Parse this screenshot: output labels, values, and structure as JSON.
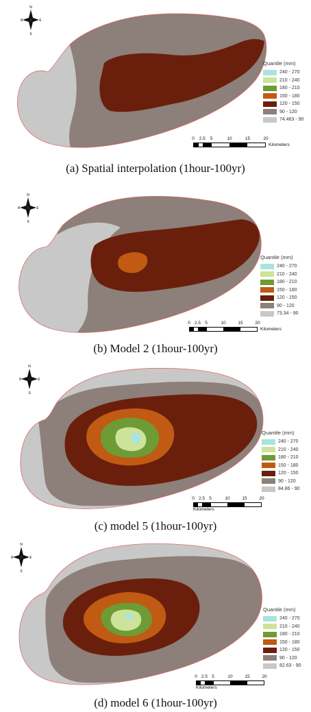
{
  "panels": [
    {
      "caption": "(a) Spatial interpolation (1hour-100yr)",
      "legend_title": "Quantile (mm)",
      "legend": [
        {
          "label": "240 - 270",
          "color": "#a8e4e0"
        },
        {
          "label": "210 - 240",
          "color": "#cde39a"
        },
        {
          "label": "180 - 210",
          "color": "#6e9b35"
        },
        {
          "label": "150 - 180",
          "color": "#c15a12"
        },
        {
          "label": "120 - 150",
          "color": "#6a1f0c"
        },
        {
          "label": "90 - 120",
          "color": "#8d7f79"
        },
        {
          "label": "74.463 - 90",
          "color": "#c8c8c8"
        }
      ],
      "scale_ticks": [
        "0",
        "2.5",
        "5",
        "10",
        "15",
        "20"
      ],
      "scale_unit": "Kilometers"
    },
    {
      "caption": "(b) Model 2 (1hour-100yr)",
      "legend_title": "Quantile (mm)",
      "legend": [
        {
          "label": "240 - 270",
          "color": "#a8e4e0"
        },
        {
          "label": "210 - 240",
          "color": "#cde39a"
        },
        {
          "label": "180 - 210",
          "color": "#6e9b35"
        },
        {
          "label": "150 - 180",
          "color": "#c15a12"
        },
        {
          "label": "120 - 150",
          "color": "#6a1f0c"
        },
        {
          "label": "90 - 120",
          "color": "#8d7f79"
        },
        {
          "label": "73.34 - 90",
          "color": "#c8c8c8"
        }
      ],
      "scale_ticks": [
        "0",
        "2.5",
        "5",
        "10",
        "15",
        "20"
      ],
      "scale_unit": "Kilometers"
    },
    {
      "caption": "(c) model 5 (1hour-100yr)",
      "legend_title": "Quantile (mm)",
      "legend": [
        {
          "label": "240 - 270",
          "color": "#a8e4e0"
        },
        {
          "label": "210 - 240",
          "color": "#cde39a"
        },
        {
          "label": "180 - 210",
          "color": "#6e9b35"
        },
        {
          "label": "150 - 180",
          "color": "#c15a12"
        },
        {
          "label": "120 - 150",
          "color": "#6a1f0c"
        },
        {
          "label": "90 - 120",
          "color": "#8d7f79"
        },
        {
          "label": "84.86 - 90",
          "color": "#c8c8c8"
        }
      ],
      "scale_ticks": [
        "0",
        "2.5",
        "5",
        "10",
        "15",
        "20"
      ],
      "scale_unit": "Kilometers"
    },
    {
      "caption": "(d) model 6 (1hour-100yr)",
      "legend_title": "Quantile (mm)",
      "legend": [
        {
          "label": "240 - 270",
          "color": "#a8e4e0"
        },
        {
          "label": "210 - 240",
          "color": "#cde39a"
        },
        {
          "label": "180 - 210",
          "color": "#6e9b35"
        },
        {
          "label": "150 - 180",
          "color": "#c15a12"
        },
        {
          "label": "120 - 150",
          "color": "#6a1f0c"
        },
        {
          "label": "90 - 120",
          "color": "#8d7f79"
        },
        {
          "label": "82.63 - 90",
          "color": "#c8c8c8"
        }
      ],
      "scale_ticks": [
        "0",
        "2.5",
        "5",
        "10",
        "15",
        "20"
      ],
      "scale_unit": "Kilometers"
    }
  ],
  "compass_labels": {
    "n": "N",
    "s": "S",
    "e": "E",
    "w": "W"
  },
  "colors": {
    "outline": "#e26a6a",
    "zone_74_90": "#c8c8c8",
    "zone_90_120": "#8d7f79",
    "zone_120_150": "#6a1f0c",
    "zone_150_180": "#c15a12",
    "zone_180_210": "#6e9b35",
    "zone_210_240": "#cde39a",
    "zone_240_270": "#a8e4e0"
  }
}
